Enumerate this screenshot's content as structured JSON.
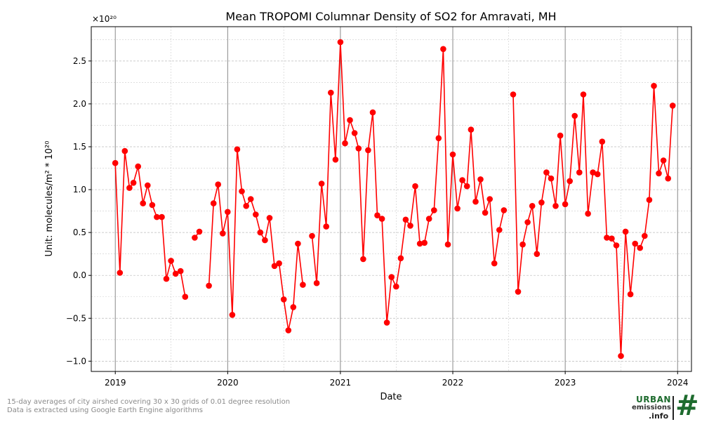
{
  "chart_data": {
    "type": "line",
    "title": "Mean TROPOMI Columnar Density of SO2 for Amravati, MH",
    "xlabel": "Date",
    "ylabel": "Unit: molecules/m² * 10²⁰",
    "y_offset_label": "×10²⁰",
    "xlim": [
      "2018-10-15",
      "2024-02-15"
    ],
    "ylim": [
      -1.12,
      2.9
    ],
    "x_ticks": [
      "2019",
      "2020",
      "2021",
      "2022",
      "2023",
      "2024"
    ],
    "y_ticks": [
      -1.0,
      -0.5,
      0.0,
      0.5,
      1.0,
      1.5,
      2.0,
      2.5
    ],
    "y_tick_labels": [
      "−1.0",
      "−0.5",
      "0.0",
      "0.5",
      "1.0",
      "1.5",
      "2.0",
      "2.5"
    ],
    "grid": true,
    "color": "#ff0000",
    "series": [
      {
        "points": [
          {
            "x": "2019-01-01",
            "y": 1.31
          },
          {
            "x": "2019-01-16",
            "y": 0.03
          },
          {
            "x": "2019-02-01",
            "y": 1.45
          },
          {
            "x": "2019-02-16",
            "y": 1.02
          },
          {
            "x": "2019-03-01",
            "y": 1.08
          },
          {
            "x": "2019-03-16",
            "y": 1.27
          },
          {
            "x": "2019-04-01",
            "y": 0.84
          },
          {
            "x": "2019-04-16",
            "y": 1.05
          },
          {
            "x": "2019-05-01",
            "y": 0.82
          },
          {
            "x": "2019-05-16",
            "y": 0.68
          },
          {
            "x": "2019-06-01",
            "y": 0.68
          },
          {
            "x": "2019-06-16",
            "y": -0.04
          },
          {
            "x": "2019-07-01",
            "y": 0.17
          },
          {
            "x": "2019-07-16",
            "y": 0.02
          },
          {
            "x": "2019-08-01",
            "y": 0.05
          },
          {
            "x": "2019-08-16",
            "y": -0.25
          },
          {
            "x": "2019-09-01",
            "y": null
          },
          {
            "x": "2019-09-16",
            "y": 0.44
          },
          {
            "x": "2019-10-01",
            "y": 0.51
          },
          {
            "x": "2019-10-16",
            "y": null
          },
          {
            "x": "2019-11-01",
            "y": -0.12
          },
          {
            "x": "2019-11-16",
            "y": 0.84
          },
          {
            "x": "2019-12-01",
            "y": 1.06
          },
          {
            "x": "2019-12-16",
            "y": 0.49
          },
          {
            "x": "2020-01-01",
            "y": 0.74
          },
          {
            "x": "2020-01-16",
            "y": -0.46
          },
          {
            "x": "2020-02-01",
            "y": 1.47
          },
          {
            "x": "2020-02-16",
            "y": 0.98
          },
          {
            "x": "2020-03-01",
            "y": 0.81
          },
          {
            "x": "2020-03-16",
            "y": 0.89
          },
          {
            "x": "2020-04-01",
            "y": 0.71
          },
          {
            "x": "2020-04-16",
            "y": 0.5
          },
          {
            "x": "2020-05-01",
            "y": 0.41
          },
          {
            "x": "2020-05-16",
            "y": 0.67
          },
          {
            "x": "2020-06-01",
            "y": 0.11
          },
          {
            "x": "2020-06-16",
            "y": 0.14
          },
          {
            "x": "2020-07-01",
            "y": -0.28
          },
          {
            "x": "2020-07-16",
            "y": -0.64
          },
          {
            "x": "2020-08-01",
            "y": -0.37
          },
          {
            "x": "2020-08-16",
            "y": 0.37
          },
          {
            "x": "2020-09-01",
            "y": -0.11
          },
          {
            "x": "2020-09-16",
            "y": null
          },
          {
            "x": "2020-10-01",
            "y": 0.46
          },
          {
            "x": "2020-10-16",
            "y": -0.09
          },
          {
            "x": "2020-11-01",
            "y": 1.07
          },
          {
            "x": "2020-11-16",
            "y": 0.57
          },
          {
            "x": "2020-12-01",
            "y": 2.13
          },
          {
            "x": "2020-12-16",
            "y": 1.35
          },
          {
            "x": "2021-01-01",
            "y": 2.72
          },
          {
            "x": "2021-01-16",
            "y": 1.54
          },
          {
            "x": "2021-02-01",
            "y": 1.81
          },
          {
            "x": "2021-02-16",
            "y": 1.66
          },
          {
            "x": "2021-03-01",
            "y": 1.48
          },
          {
            "x": "2021-03-16",
            "y": 0.19
          },
          {
            "x": "2021-04-01",
            "y": 1.46
          },
          {
            "x": "2021-04-16",
            "y": 1.9
          },
          {
            "x": "2021-05-01",
            "y": 0.7
          },
          {
            "x": "2021-05-16",
            "y": 0.66
          },
          {
            "x": "2021-06-01",
            "y": -0.55
          },
          {
            "x": "2021-06-16",
            "y": -0.02
          },
          {
            "x": "2021-07-01",
            "y": -0.13
          },
          {
            "x": "2021-07-16",
            "y": 0.2
          },
          {
            "x": "2021-08-01",
            "y": 0.65
          },
          {
            "x": "2021-08-16",
            "y": 0.58
          },
          {
            "x": "2021-09-01",
            "y": 1.04
          },
          {
            "x": "2021-09-16",
            "y": 0.37
          },
          {
            "x": "2021-10-01",
            "y": 0.38
          },
          {
            "x": "2021-10-16",
            "y": 0.66
          },
          {
            "x": "2021-11-01",
            "y": 0.76
          },
          {
            "x": "2021-11-16",
            "y": 1.6
          },
          {
            "x": "2021-12-01",
            "y": 2.64
          },
          {
            "x": "2021-12-16",
            "y": 0.36
          },
          {
            "x": "2022-01-01",
            "y": 1.41
          },
          {
            "x": "2022-01-16",
            "y": 0.78
          },
          {
            "x": "2022-02-01",
            "y": 1.11
          },
          {
            "x": "2022-02-16",
            "y": 1.04
          },
          {
            "x": "2022-03-01",
            "y": 1.7
          },
          {
            "x": "2022-03-16",
            "y": 0.86
          },
          {
            "x": "2022-04-01",
            "y": 1.12
          },
          {
            "x": "2022-04-16",
            "y": 0.73
          },
          {
            "x": "2022-05-01",
            "y": 0.89
          },
          {
            "x": "2022-05-16",
            "y": 0.14
          },
          {
            "x": "2022-06-01",
            "y": 0.53
          },
          {
            "x": "2022-06-16",
            "y": 0.76
          },
          {
            "x": "2022-07-01",
            "y": null
          },
          {
            "x": "2022-07-16",
            "y": 2.11
          },
          {
            "x": "2022-08-01",
            "y": -0.19
          },
          {
            "x": "2022-08-16",
            "y": 0.36
          },
          {
            "x": "2022-09-01",
            "y": 0.62
          },
          {
            "x": "2022-09-16",
            "y": 0.81
          },
          {
            "x": "2022-10-01",
            "y": 0.25
          },
          {
            "x": "2022-10-16",
            "y": 0.85
          },
          {
            "x": "2022-11-01",
            "y": 1.2
          },
          {
            "x": "2022-11-16",
            "y": 1.13
          },
          {
            "x": "2022-12-01",
            "y": 0.81
          },
          {
            "x": "2022-12-16",
            "y": 1.63
          },
          {
            "x": "2023-01-01",
            "y": 0.83
          },
          {
            "x": "2023-01-16",
            "y": 1.1
          },
          {
            "x": "2023-02-01",
            "y": 1.86
          },
          {
            "x": "2023-02-16",
            "y": 1.2
          },
          {
            "x": "2023-03-01",
            "y": 2.11
          },
          {
            "x": "2023-03-16",
            "y": 0.72
          },
          {
            "x": "2023-04-01",
            "y": 1.2
          },
          {
            "x": "2023-04-16",
            "y": 1.18
          },
          {
            "x": "2023-05-01",
            "y": 1.56
          },
          {
            "x": "2023-05-16",
            "y": 0.44
          },
          {
            "x": "2023-06-01",
            "y": 0.43
          },
          {
            "x": "2023-06-16",
            "y": 0.35
          },
          {
            "x": "2023-07-01",
            "y": -0.94
          },
          {
            "x": "2023-07-16",
            "y": 0.51
          },
          {
            "x": "2023-08-01",
            "y": -0.22
          },
          {
            "x": "2023-08-16",
            "y": 0.37
          },
          {
            "x": "2023-09-01",
            "y": 0.32
          },
          {
            "x": "2023-09-16",
            "y": 0.46
          },
          {
            "x": "2023-10-01",
            "y": 0.88
          },
          {
            "x": "2023-10-16",
            "y": 2.21
          },
          {
            "x": "2023-11-01",
            "y": 1.19
          },
          {
            "x": "2023-11-16",
            "y": 1.34
          },
          {
            "x": "2023-12-01",
            "y": 1.13
          },
          {
            "x": "2023-12-16",
            "y": 1.98
          }
        ]
      }
    ]
  },
  "footnote": {
    "line1": "15-day averages of city airshed covering 30 x 30 grids of 0.01 degree resolution",
    "line2": "Data is extracted using Google Earth Engine algorithms"
  },
  "logo": {
    "word1": "URBAN",
    "word2": "emissions",
    "word3": ".info",
    "mark": "#"
  }
}
